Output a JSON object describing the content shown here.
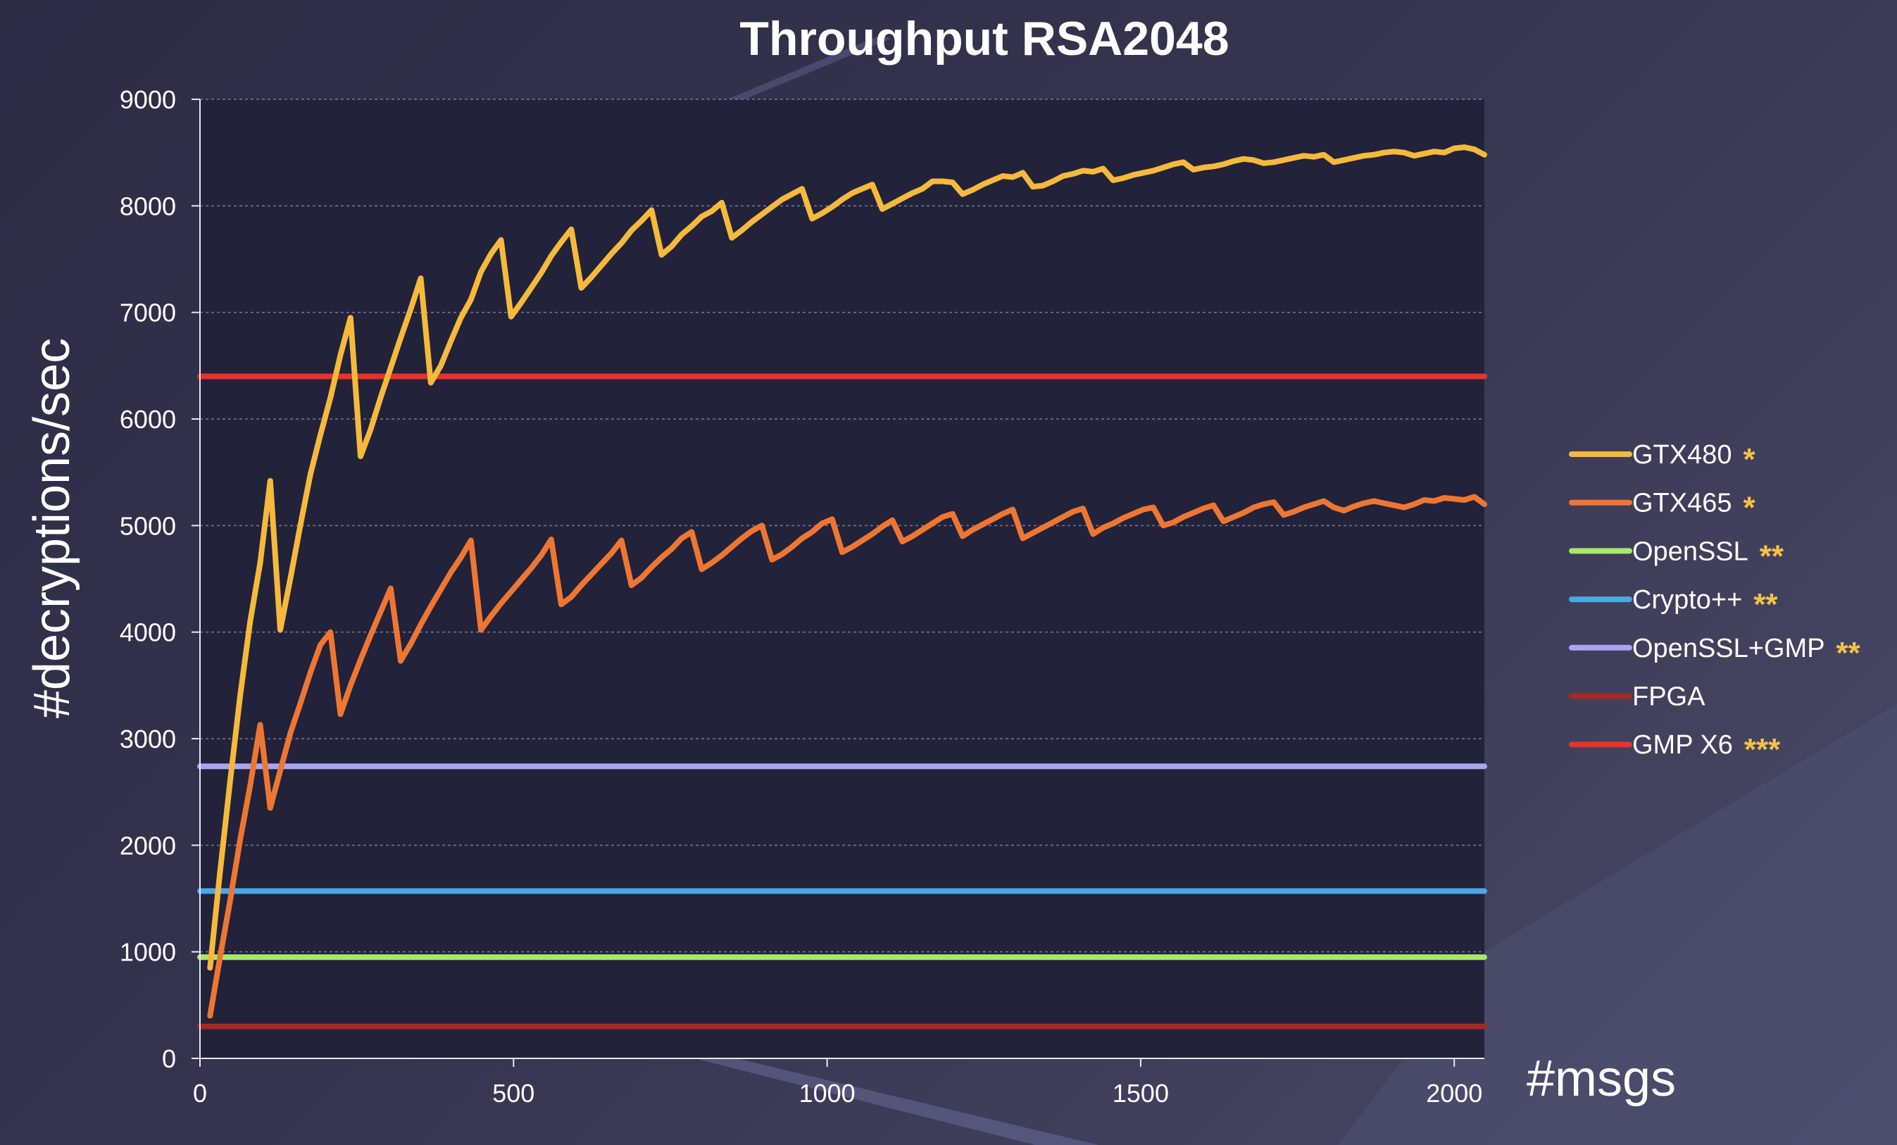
{
  "chart_data": {
    "type": "line",
    "title": "Throughput RSA2048",
    "xlabel": "#msgs",
    "ylabel": "#decryptions/sec",
    "xlim": [
      0,
      2048
    ],
    "ylim": [
      0,
      9000
    ],
    "x_ticks": [
      0,
      500,
      1000,
      1500,
      2000
    ],
    "y_ticks": [
      0,
      1000,
      2000,
      3000,
      4000,
      5000,
      6000,
      7000,
      8000,
      9000
    ],
    "grid": "horizontal dashed",
    "legend_position": "right",
    "series": [
      {
        "name": "GTX480",
        "marker_text": "*",
        "color": "#f5b93c",
        "x": [
          16,
          32,
          48,
          64,
          80,
          96,
          112,
          128,
          144,
          160,
          176,
          192,
          208,
          224,
          240,
          256,
          272,
          288,
          304,
          320,
          336,
          352,
          368,
          384,
          400,
          416,
          432,
          448,
          464,
          480,
          496,
          512,
          528,
          544,
          560,
          576,
          592,
          608,
          624,
          640,
          656,
          672,
          688,
          704,
          720,
          736,
          752,
          768,
          784,
          800,
          816,
          832,
          848,
          864,
          880,
          896,
          912,
          928,
          944,
          960,
          976,
          992,
          1008,
          1024,
          1040,
          1056,
          1072,
          1088,
          1104,
          1120,
          1136,
          1152,
          1168,
          1184,
          1200,
          1216,
          1232,
          1248,
          1264,
          1280,
          1296,
          1312,
          1328,
          1344,
          1360,
          1376,
          1392,
          1408,
          1424,
          1440,
          1456,
          1472,
          1488,
          1504,
          1520,
          1536,
          1552,
          1568,
          1584,
          1600,
          1616,
          1632,
          1648,
          1664,
          1680,
          1696,
          1712,
          1728,
          1744,
          1760,
          1776,
          1792,
          1808,
          1824,
          1840,
          1856,
          1872,
          1888,
          1904,
          1920,
          1936,
          1952,
          1968,
          1984,
          2000,
          2016,
          2032,
          2048
        ],
        "y": [
          850,
          1750,
          2600,
          3400,
          4100,
          4650,
          5420,
          4020,
          4500,
          5000,
          5480,
          5850,
          6200,
          6600,
          6950,
          5650,
          5900,
          6200,
          6480,
          6760,
          7030,
          7320,
          6340,
          6500,
          6730,
          6950,
          7120,
          7380,
          7550,
          7680,
          6960,
          7090,
          7230,
          7370,
          7530,
          7660,
          7780,
          7230,
          7330,
          7440,
          7550,
          7650,
          7770,
          7860,
          7960,
          7540,
          7620,
          7730,
          7810,
          7900,
          7950,
          8030,
          7700,
          7770,
          7850,
          7920,
          7990,
          8060,
          8110,
          8160,
          7880,
          7930,
          7990,
          8060,
          8120,
          8160,
          8200,
          7970,
          8020,
          8070,
          8120,
          8160,
          8230,
          8230,
          8220,
          8110,
          8150,
          8200,
          8240,
          8280,
          8270,
          8310,
          8180,
          8190,
          8230,
          8280,
          8300,
          8330,
          8320,
          8350,
          8240,
          8260,
          8290,
          8310,
          8330,
          8360,
          8390,
          8410,
          8340,
          8360,
          8370,
          8390,
          8420,
          8440,
          8430,
          8400,
          8410,
          8430,
          8450,
          8470,
          8460,
          8480,
          8410,
          8430,
          8450,
          8470,
          8480,
          8500,
          8510,
          8500,
          8470,
          8490,
          8510,
          8500,
          8540,
          8550,
          8530,
          8480
        ]
      },
      {
        "name": "GTX465",
        "marker_text": "*",
        "color": "#ee7633",
        "x": [
          16,
          32,
          48,
          64,
          80,
          96,
          112,
          128,
          144,
          160,
          176,
          192,
          208,
          224,
          240,
          256,
          272,
          288,
          304,
          320,
          336,
          352,
          368,
          384,
          400,
          416,
          432,
          448,
          464,
          480,
          496,
          512,
          528,
          544,
          560,
          576,
          592,
          608,
          624,
          640,
          656,
          672,
          688,
          704,
          720,
          736,
          752,
          768,
          784,
          800,
          816,
          832,
          848,
          864,
          880,
          896,
          912,
          928,
          944,
          960,
          976,
          992,
          1008,
          1024,
          1040,
          1056,
          1072,
          1088,
          1104,
          1120,
          1136,
          1152,
          1168,
          1184,
          1200,
          1216,
          1232,
          1248,
          1264,
          1280,
          1296,
          1312,
          1328,
          1344,
          1360,
          1376,
          1392,
          1408,
          1424,
          1440,
          1456,
          1472,
          1488,
          1504,
          1520,
          1536,
          1552,
          1568,
          1584,
          1600,
          1616,
          1632,
          1648,
          1664,
          1680,
          1696,
          1712,
          1728,
          1744,
          1760,
          1776,
          1792,
          1808,
          1824,
          1840,
          1856,
          1872,
          1888,
          1904,
          1920,
          1936,
          1952,
          1968,
          1984,
          2000,
          2016,
          2032,
          2048
        ],
        "y": [
          400,
          950,
          1480,
          2050,
          2560,
          3130,
          2350,
          2700,
          3050,
          3330,
          3620,
          3880,
          4000,
          3230,
          3500,
          3740,
          3970,
          4190,
          4410,
          3730,
          3890,
          4070,
          4240,
          4400,
          4560,
          4700,
          4860,
          4020,
          4150,
          4270,
          4380,
          4490,
          4600,
          4720,
          4870,
          4260,
          4330,
          4440,
          4540,
          4640,
          4740,
          4860,
          4440,
          4510,
          4610,
          4700,
          4780,
          4880,
          4940,
          4590,
          4650,
          4720,
          4800,
          4880,
          4950,
          5000,
          4680,
          4730,
          4800,
          4880,
          4940,
          5020,
          5060,
          4750,
          4800,
          4860,
          4920,
          4990,
          5050,
          4850,
          4900,
          4960,
          5020,
          5080,
          5110,
          4900,
          4960,
          5010,
          5060,
          5110,
          5150,
          4880,
          4930,
          4980,
          5030,
          5080,
          5130,
          5160,
          4920,
          4980,
          5020,
          5070,
          5110,
          5150,
          5170,
          5000,
          5030,
          5080,
          5120,
          5160,
          5190,
          5040,
          5080,
          5120,
          5170,
          5200,
          5220,
          5100,
          5130,
          5170,
          5200,
          5230,
          5170,
          5140,
          5180,
          5210,
          5230,
          5210,
          5190,
          5170,
          5200,
          5240,
          5230,
          5260,
          5250,
          5240,
          5270,
          5200
        ]
      },
      {
        "name": "OpenSSL",
        "marker_text": "**",
        "color": "#a8e86a",
        "x": [
          0,
          2048
        ],
        "y": [
          950,
          950
        ]
      },
      {
        "name": "Crypto++",
        "marker_text": "**",
        "color": "#4aa8e6",
        "x": [
          0,
          2048
        ],
        "y": [
          1570,
          1570
        ]
      },
      {
        "name": "OpenSSL+GMP",
        "marker_text": "**",
        "color": "#a8a6f2",
        "x": [
          0,
          2048
        ],
        "y": [
          2740,
          2740
        ]
      },
      {
        "name": "FPGA",
        "marker_text": "",
        "color": "#a32a22",
        "x": [
          0,
          2048
        ],
        "y": [
          300,
          300
        ]
      },
      {
        "name": "GMP X6",
        "marker_text": "***",
        "color": "#e8322a",
        "x": [
          0,
          2048
        ],
        "y": [
          6400,
          6400
        ]
      }
    ]
  }
}
